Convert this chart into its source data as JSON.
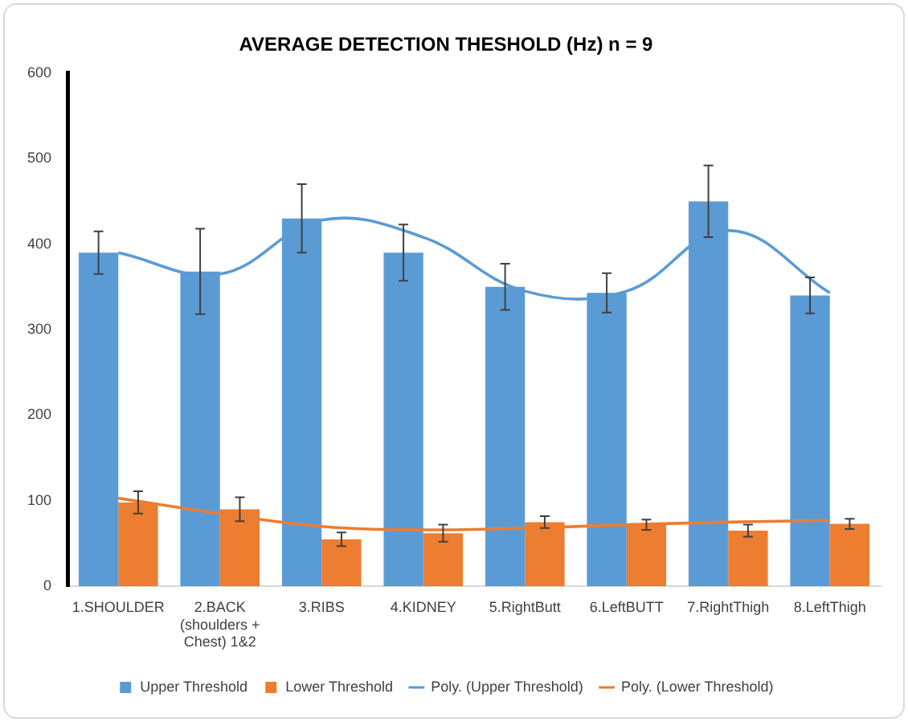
{
  "chart_data": {
    "type": "bar",
    "title": "AVERAGE DETECTION THESHOLD (Hz) n = 9",
    "categories": [
      "1.SHOULDER",
      "2.BACK (shoulders + Chest) 1&2",
      "3.RIBS",
      "4.KIDNEY",
      "5.RightButt",
      "6.LeftBUTT",
      "7.RightThigh",
      "8.LeftThigh"
    ],
    "series": [
      {
        "name": "Upper Threshold",
        "color": "#5b9bd5",
        "values": [
          390,
          368,
          430,
          390,
          350,
          343,
          450,
          340
        ],
        "errors": [
          25,
          50,
          40,
          33,
          27,
          23,
          42,
          21
        ]
      },
      {
        "name": "Lower Threshold",
        "color": "#ed7d31",
        "values": [
          98,
          90,
          55,
          62,
          75,
          72,
          65,
          73
        ],
        "errors": [
          13,
          14,
          8,
          10,
          7,
          6,
          7,
          6
        ]
      },
      {
        "name": "Poly. (Upper Threshold)",
        "type": "line",
        "color": "#5b9bd5",
        "values": [
          390,
          365,
          428,
          408,
          345,
          345,
          416,
          343
        ]
      },
      {
        "name": "Poly. (Lower Threshold)",
        "type": "line",
        "color": "#ed7d31",
        "values": [
          103,
          85,
          70,
          66,
          68,
          72,
          75,
          77
        ]
      }
    ],
    "ylim": [
      0,
      600
    ],
    "yticks": [
      0,
      100,
      200,
      300,
      400,
      500,
      600
    ],
    "grid": false,
    "legend": "bottom",
    "marker": "none"
  }
}
